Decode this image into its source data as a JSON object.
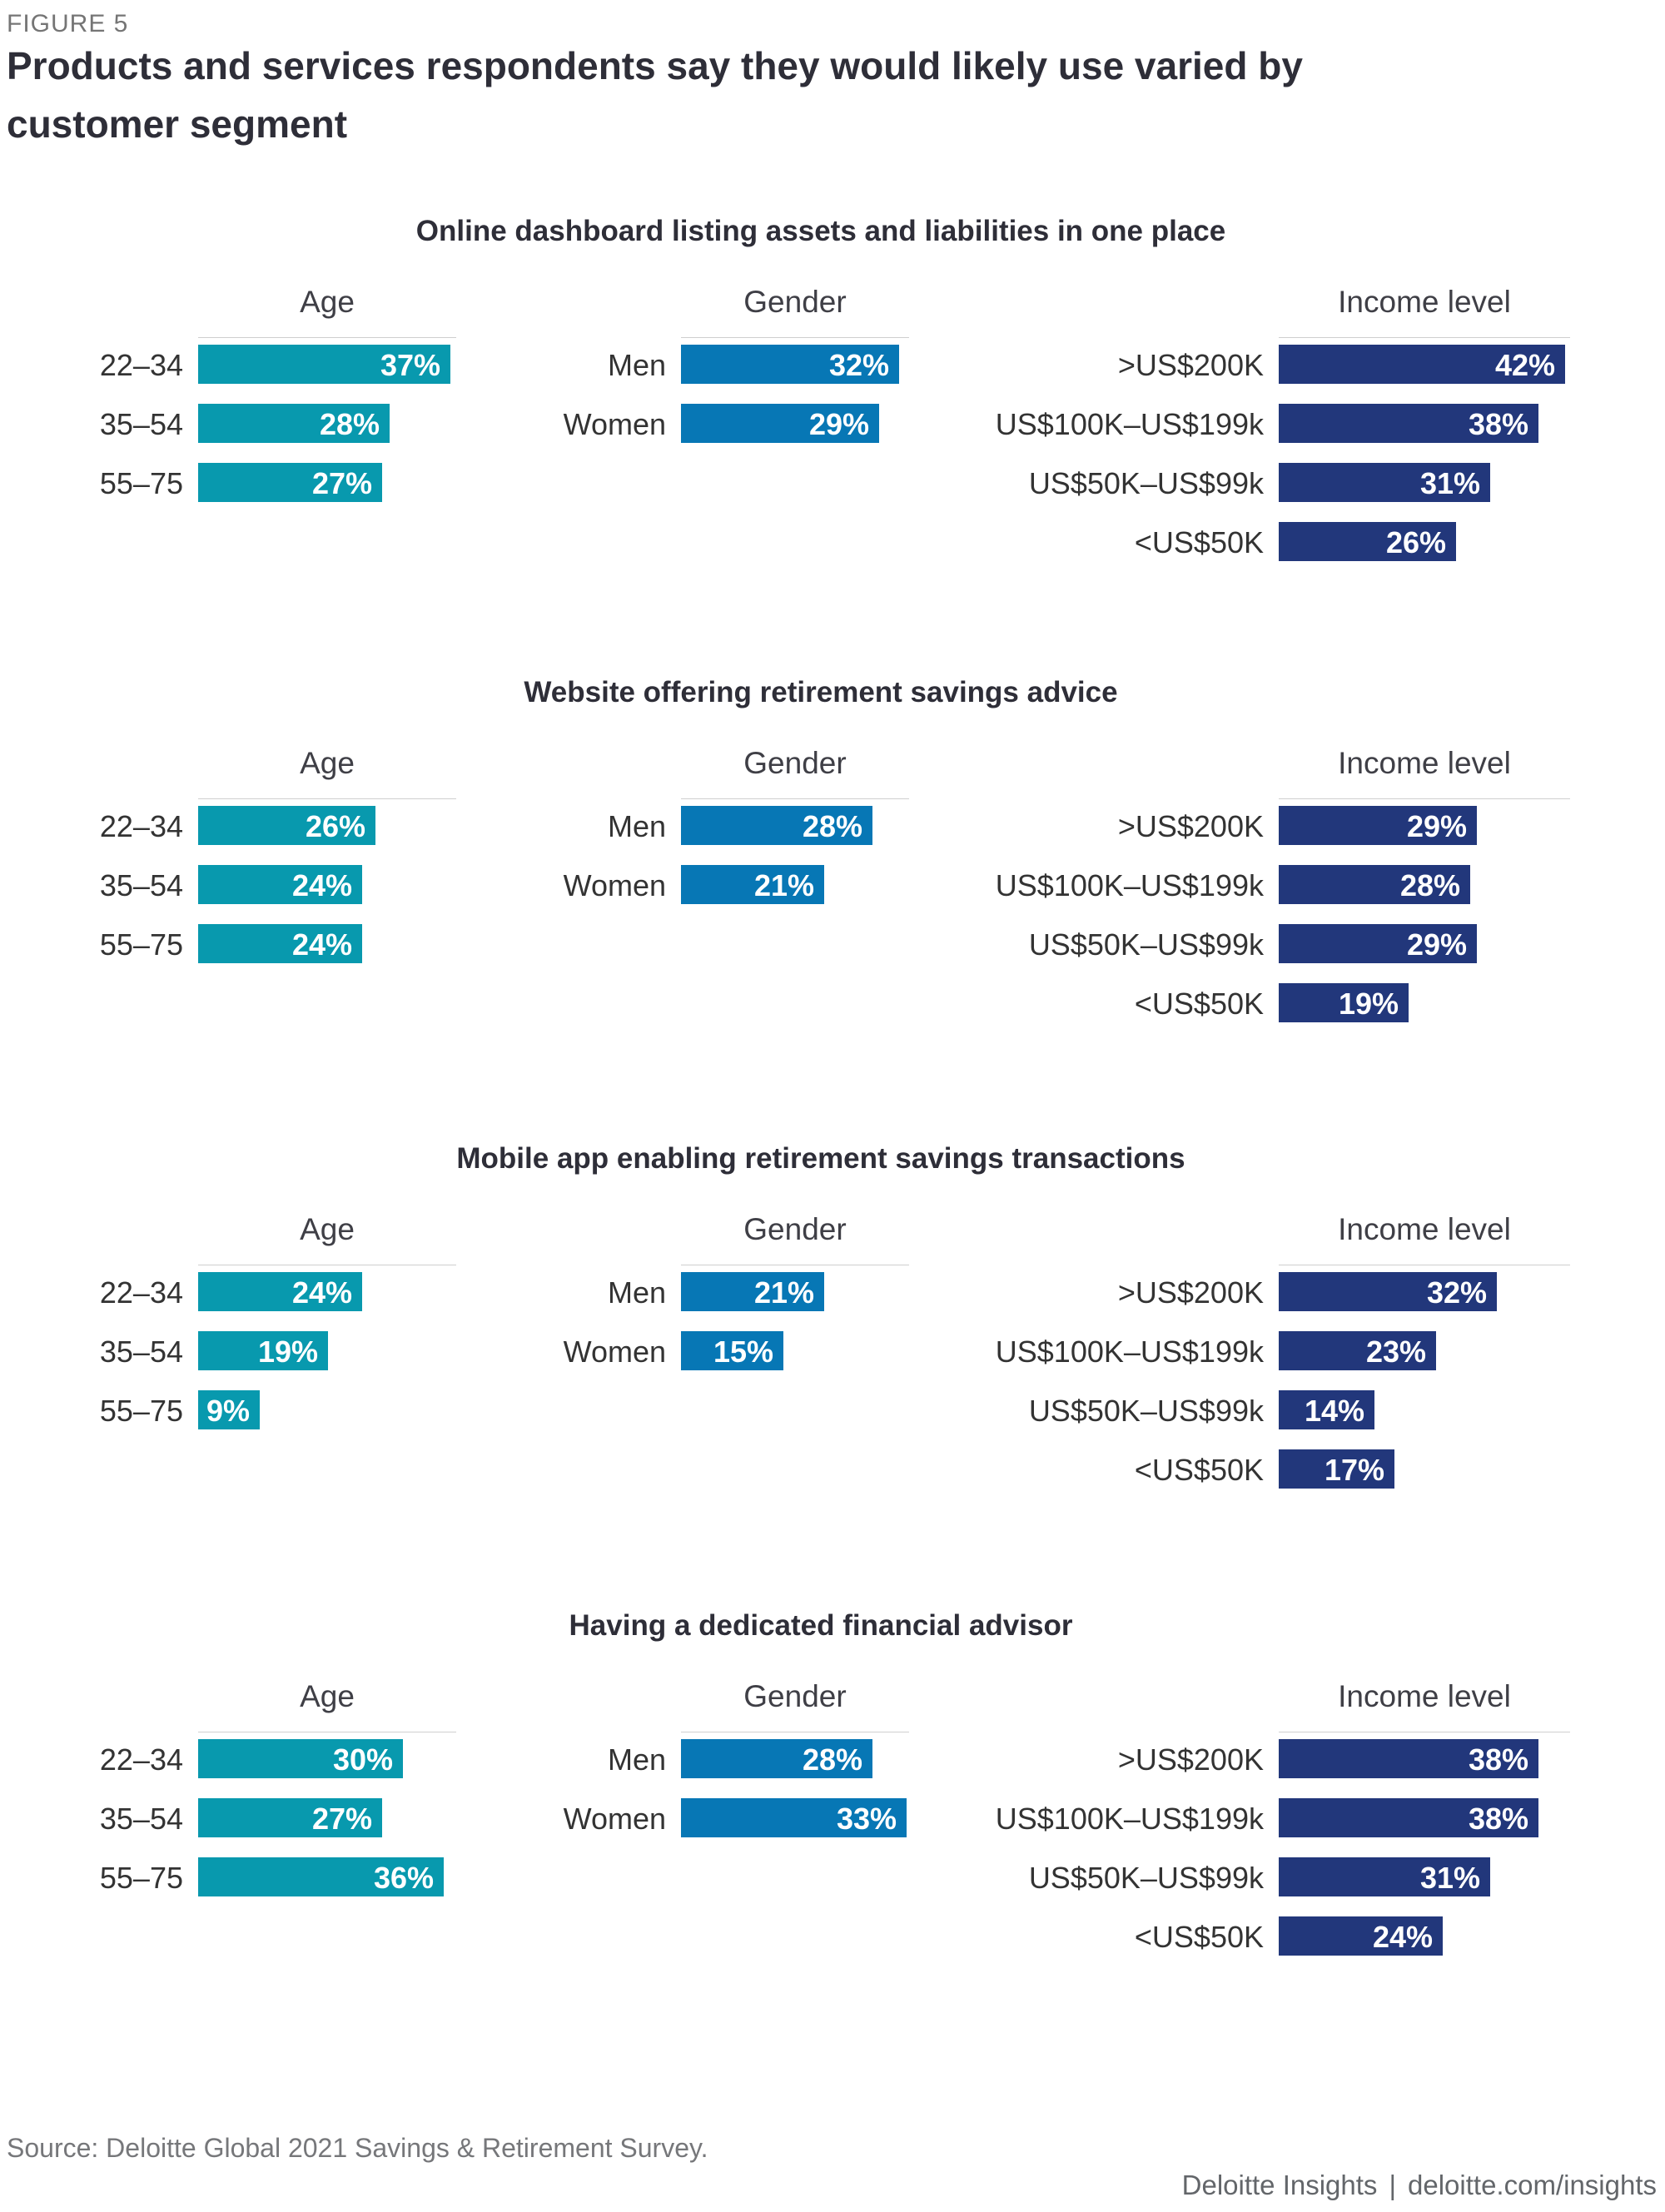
{
  "figure_label": "FIGURE 5",
  "title": "Products and services respondents say they would likely use varied by customer segment",
  "colors": {
    "age_teal": "#0899ae",
    "gender_blue": "#0777b5",
    "income_navy": "#22377b"
  },
  "chart_data": [
    {
      "type": "bar",
      "orientation": "horizontal",
      "unit": "%",
      "title": "Online dashboard listing assets and liabilities in one place",
      "groups": [
        {
          "name": "Age",
          "categories": [
            "22–34",
            "35–54",
            "55–75"
          ],
          "values": [
            37,
            28,
            27
          ]
        },
        {
          "name": "Gender",
          "categories": [
            "Men",
            "Women"
          ],
          "values": [
            32,
            29
          ]
        },
        {
          "name": "Income level",
          "categories": [
            ">US$200K",
            "US$100K–US$199k",
            "US$50K–US$99k",
            "<US$50K"
          ],
          "values": [
            42,
            38,
            31,
            26
          ]
        }
      ]
    },
    {
      "type": "bar",
      "orientation": "horizontal",
      "unit": "%",
      "title": "Website offering retirement savings advice",
      "groups": [
        {
          "name": "Age",
          "categories": [
            "22–34",
            "35–54",
            "55–75"
          ],
          "values": [
            26,
            24,
            24
          ]
        },
        {
          "name": "Gender",
          "categories": [
            "Men",
            "Women"
          ],
          "values": [
            28,
            21
          ]
        },
        {
          "name": "Income level",
          "categories": [
            ">US$200K",
            "US$100K–US$199k",
            "US$50K–US$99k",
            "<US$50K"
          ],
          "values": [
            29,
            28,
            29,
            19
          ]
        }
      ]
    },
    {
      "type": "bar",
      "orientation": "horizontal",
      "unit": "%",
      "title": "Mobile app enabling retirement savings transactions",
      "groups": [
        {
          "name": "Age",
          "categories": [
            "22–34",
            "35–54",
            "55–75"
          ],
          "values": [
            24,
            19,
            9
          ]
        },
        {
          "name": "Gender",
          "categories": [
            "Men",
            "Women"
          ],
          "values": [
            21,
            15
          ]
        },
        {
          "name": "Income level",
          "categories": [
            ">US$200K",
            "US$100K–US$199k",
            "US$50K–US$99k",
            "<US$50K"
          ],
          "values": [
            32,
            23,
            14,
            17
          ]
        }
      ]
    },
    {
      "type": "bar",
      "orientation": "horizontal",
      "unit": "%",
      "title": "Having a dedicated financial advisor",
      "groups": [
        {
          "name": "Age",
          "categories": [
            "22–34",
            "35–54",
            "55–75"
          ],
          "values": [
            30,
            27,
            36
          ]
        },
        {
          "name": "Gender",
          "categories": [
            "Men",
            "Women"
          ],
          "values": [
            28,
            33
          ]
        },
        {
          "name": "Income level",
          "categories": [
            ">US$200K",
            "US$100K–US$199k",
            "US$50K–US$99k",
            "<US$50K"
          ],
          "values": [
            38,
            38,
            31,
            24
          ]
        }
      ]
    }
  ],
  "charts": [
    {
      "title": "Online dashboard listing assets and liabilities in one place",
      "groups": [
        {
          "heading": "Age",
          "rows": [
            {
              "label": "22–34",
              "value_label": "37%"
            },
            {
              "label": "35–54",
              "value_label": "28%"
            },
            {
              "label": "55–75",
              "value_label": "27%"
            }
          ]
        },
        {
          "heading": "Gender",
          "rows": [
            {
              "label": "Men",
              "value_label": "32%"
            },
            {
              "label": "Women",
              "value_label": "29%"
            }
          ]
        },
        {
          "heading": "Income level",
          "rows": [
            {
              "label": ">US$200K",
              "value_label": "42%"
            },
            {
              "label": "US$100K–US$199k",
              "value_label": "38%"
            },
            {
              "label": "US$50K–US$99k",
              "value_label": "31%"
            },
            {
              "label": "<US$50K",
              "value_label": "26%"
            }
          ]
        }
      ]
    },
    {
      "title": "Website offering retirement savings advice",
      "groups": [
        {
          "heading": "Age",
          "rows": [
            {
              "label": "22–34",
              "value_label": "26%"
            },
            {
              "label": "35–54",
              "value_label": "24%"
            },
            {
              "label": "55–75",
              "value_label": "24%"
            }
          ]
        },
        {
          "heading": "Gender",
          "rows": [
            {
              "label": "Men",
              "value_label": "28%"
            },
            {
              "label": "Women",
              "value_label": "21%"
            }
          ]
        },
        {
          "heading": "Income level",
          "rows": [
            {
              "label": ">US$200K",
              "value_label": "29%"
            },
            {
              "label": "US$100K–US$199k",
              "value_label": "28%"
            },
            {
              "label": "US$50K–US$99k",
              "value_label": "29%"
            },
            {
              "label": "<US$50K",
              "value_label": "19%"
            }
          ]
        }
      ]
    },
    {
      "title": "Mobile app enabling retirement savings transactions",
      "groups": [
        {
          "heading": "Age",
          "rows": [
            {
              "label": "22–34",
              "value_label": "24%"
            },
            {
              "label": "35–54",
              "value_label": "19%"
            },
            {
              "label": "55–75",
              "value_label": "9%"
            }
          ]
        },
        {
          "heading": "Gender",
          "rows": [
            {
              "label": "Men",
              "value_label": "21%"
            },
            {
              "label": "Women",
              "value_label": "15%"
            }
          ]
        },
        {
          "heading": "Income level",
          "rows": [
            {
              "label": ">US$200K",
              "value_label": "32%"
            },
            {
              "label": "US$100K–US$199k",
              "value_label": "23%"
            },
            {
              "label": "US$50K–US$99k",
              "value_label": "14%"
            },
            {
              "label": "<US$50K",
              "value_label": "17%"
            }
          ]
        }
      ]
    },
    {
      "title": "Having a dedicated financial advisor",
      "groups": [
        {
          "heading": "Age",
          "rows": [
            {
              "label": "22–34",
              "value_label": "30%"
            },
            {
              "label": "35–54",
              "value_label": "27%"
            },
            {
              "label": "55–75",
              "value_label": "36%"
            }
          ]
        },
        {
          "heading": "Gender",
          "rows": [
            {
              "label": "Men",
              "value_label": "28%"
            },
            {
              "label": "Women",
              "value_label": "33%"
            }
          ]
        },
        {
          "heading": "Income level",
          "rows": [
            {
              "label": ">US$200K",
              "value_label": "38%"
            },
            {
              "label": "US$100K–US$199k",
              "value_label": "38%"
            },
            {
              "label": "US$50K–US$99k",
              "value_label": "31%"
            },
            {
              "label": "<US$50K",
              "value_label": "24%"
            }
          ]
        }
      ]
    }
  ],
  "source": "Source: Deloitte Global 2021 Savings & Retirement Survey.",
  "footer": {
    "brand": "Deloitte Insights",
    "divider": "|",
    "url": "deloitte.com/insights"
  }
}
